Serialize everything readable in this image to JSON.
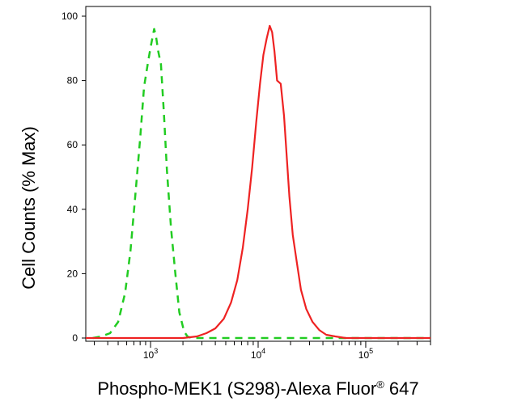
{
  "chart_data": {
    "type": "line",
    "title": "",
    "xlabel": "Phospho-MEK1 (S298)-Alexa Fluor",
    "xlabel_mark": "®",
    "xlabel_suffix": " 647",
    "ylabel": "Cell Counts (% Max)",
    "xscale": "log",
    "xlim": [
      250,
      400000
    ],
    "ylim": [
      0,
      100
    ],
    "grid": false,
    "legend": "none",
    "x_ticks": [
      {
        "base": "10",
        "exp": "3",
        "value": 1000
      },
      {
        "base": "10",
        "exp": "4",
        "value": 10000
      },
      {
        "base": "10",
        "exp": "5",
        "value": 100000
      }
    ],
    "y_ticks": [
      "0",
      "20",
      "40",
      "60",
      "80",
      "100"
    ],
    "y_tick_values": [
      0,
      20,
      40,
      60,
      80,
      100
    ],
    "series": [
      {
        "color": "#22cc22",
        "style": "dashed",
        "x": [
          290,
          350,
          420,
          500,
          580,
          650,
          720,
          800,
          870,
          950,
          1010,
          1080,
          1120,
          1180,
          1250,
          1330,
          1420,
          1550,
          1700,
          1850,
          2050,
          2200,
          2400,
          2700,
          3200,
          5000,
          20000,
          100000,
          400000
        ],
        "y": [
          0,
          0.5,
          1.5,
          5,
          14,
          27,
          44,
          62,
          78,
          86,
          91,
          96,
          94,
          89,
          85,
          70,
          52,
          34,
          20,
          8,
          2,
          0.5,
          0,
          0,
          0,
          0,
          0,
          0,
          0
        ]
      },
      {
        "color": "#ee2222",
        "style": "solid",
        "x": [
          250,
          2000,
          2700,
          3300,
          4000,
          4800,
          5600,
          6400,
          7200,
          8000,
          8800,
          9600,
          10400,
          11200,
          12000,
          12800,
          13500,
          14200,
          15000,
          16200,
          17400,
          18300,
          19500,
          21000,
          23000,
          25000,
          28000,
          32000,
          37000,
          43000,
          52000,
          65000,
          90000,
          150000,
          400000
        ],
        "y": [
          0,
          0,
          0.5,
          1.5,
          3,
          6,
          11,
          18,
          28,
          40,
          53,
          67,
          79,
          88,
          93,
          97,
          95,
          89,
          80,
          79,
          69,
          58,
          44,
          32,
          23,
          15,
          9,
          5,
          2.5,
          1,
          0.5,
          0,
          0,
          0,
          0
        ]
      }
    ]
  }
}
